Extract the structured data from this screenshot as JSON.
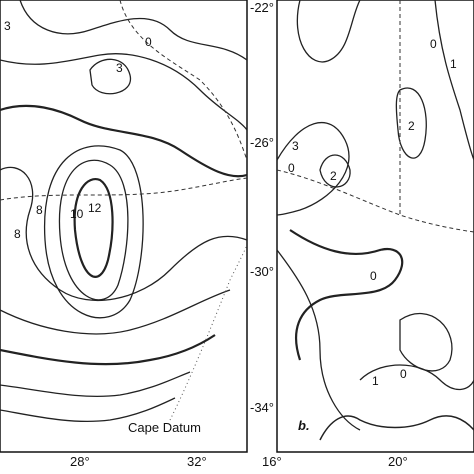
{
  "left_panel": {
    "datum": "Cape Datum",
    "x_labels": [
      "28°",
      "32°"
    ],
    "contour_labels": [
      "3",
      "0",
      "3",
      "8",
      "10",
      "12",
      "8"
    ]
  },
  "right_panel": {
    "panel_label": "b.",
    "x_labels": [
      "16°",
      "20°"
    ],
    "y_labels": [
      "-22°",
      "-26°",
      "-30°",
      "-34°"
    ],
    "contour_labels": [
      "1",
      "0",
      "2",
      "3",
      "2",
      "0",
      "0",
      "1",
      "0"
    ]
  }
}
